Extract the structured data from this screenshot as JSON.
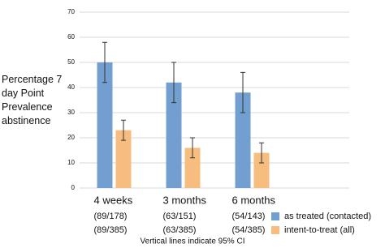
{
  "chart_data": {
    "type": "bar",
    "ylabel": "Percentage 7 day Point Prevalence abstinence",
    "categories": [
      "4 weeks",
      "3 months",
      "6 months"
    ],
    "series": [
      {
        "name": "as treated (contacted)",
        "color": "#729fcf",
        "values": [
          50,
          42,
          38
        ],
        "errors": [
          8,
          8,
          8
        ],
        "sample_labels": [
          "(89/178)",
          "(63/151)",
          "(54/143)"
        ]
      },
      {
        "name": "intent-to-treat (all)",
        "color": "#f6bd7f",
        "values": [
          23,
          16,
          14
        ],
        "errors": [
          4,
          4,
          4
        ],
        "sample_labels": [
          "(89/385)",
          "(63/385)",
          "(54/385)"
        ]
      }
    ],
    "ylim": [
      0,
      70
    ],
    "yticks": [
      0,
      10,
      20,
      30,
      40,
      50,
      60,
      70
    ],
    "grid": true,
    "note": "Vertical lines indicate 95% CI"
  }
}
